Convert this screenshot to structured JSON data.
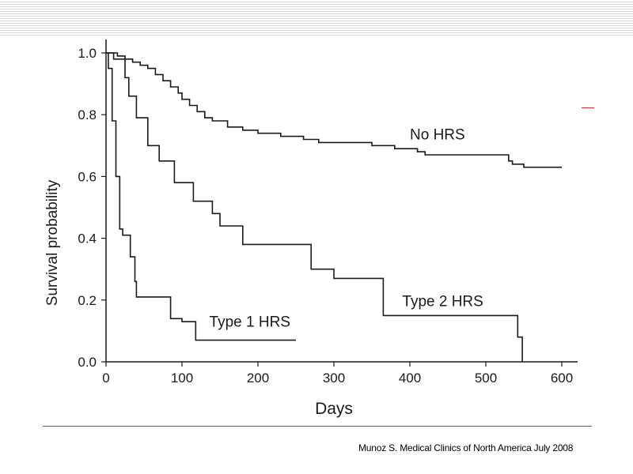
{
  "citation": "Munoz S. Medical Clinics of North America July 2008",
  "colors": {
    "accent_rule": "#c0392b",
    "line": "#1a1a1a"
  },
  "chart_data": {
    "type": "line",
    "step": true,
    "xlabel": "Days",
    "ylabel": "Survival probability",
    "xlim": [
      0,
      600
    ],
    "ylim": [
      0,
      1.0
    ],
    "xticks": [
      "0",
      "100",
      "200",
      "300",
      "400",
      "500",
      "600"
    ],
    "yticks": [
      "0.0",
      "0.2",
      "0.4",
      "0.6",
      "0.8",
      "1.0"
    ],
    "grid": false,
    "series": [
      {
        "name": "No HRS",
        "points": [
          [
            0,
            1.0
          ],
          [
            5,
            1.0
          ],
          [
            15,
            0.99
          ],
          [
            25,
            0.98
          ],
          [
            35,
            0.97
          ],
          [
            45,
            0.96
          ],
          [
            55,
            0.95
          ],
          [
            65,
            0.93
          ],
          [
            75,
            0.91
          ],
          [
            85,
            0.89
          ],
          [
            95,
            0.87
          ],
          [
            100,
            0.85
          ],
          [
            110,
            0.83
          ],
          [
            120,
            0.81
          ],
          [
            130,
            0.79
          ],
          [
            140,
            0.78
          ],
          [
            160,
            0.76
          ],
          [
            180,
            0.75
          ],
          [
            200,
            0.74
          ],
          [
            230,
            0.73
          ],
          [
            260,
            0.72
          ],
          [
            280,
            0.71
          ],
          [
            320,
            0.71
          ],
          [
            340,
            0.71
          ],
          [
            350,
            0.7
          ],
          [
            380,
            0.69
          ],
          [
            410,
            0.68
          ],
          [
            420,
            0.67
          ],
          [
            450,
            0.67
          ],
          [
            510,
            0.67
          ],
          [
            530,
            0.65
          ],
          [
            535,
            0.64
          ],
          [
            550,
            0.63
          ],
          [
            600,
            0.63
          ]
        ]
      },
      {
        "name": "Type 2 HRS",
        "points": [
          [
            0,
            1.0
          ],
          [
            10,
            0.98
          ],
          [
            25,
            0.92
          ],
          [
            30,
            0.86
          ],
          [
            40,
            0.79
          ],
          [
            55,
            0.7
          ],
          [
            70,
            0.65
          ],
          [
            90,
            0.58
          ],
          [
            115,
            0.52
          ],
          [
            140,
            0.48
          ],
          [
            150,
            0.44
          ],
          [
            180,
            0.38
          ],
          [
            270,
            0.3
          ],
          [
            300,
            0.27
          ],
          [
            365,
            0.15
          ],
          [
            540,
            0.15
          ],
          [
            542,
            0.08
          ],
          [
            548,
            0.0
          ]
        ]
      },
      {
        "name": "Type 1 HRS",
        "points": [
          [
            0,
            1.0
          ],
          [
            3,
            0.95
          ],
          [
            8,
            0.78
          ],
          [
            13,
            0.6
          ],
          [
            18,
            0.43
          ],
          [
            22,
            0.41
          ],
          [
            32,
            0.34
          ],
          [
            38,
            0.26
          ],
          [
            40,
            0.21
          ],
          [
            60,
            0.21
          ],
          [
            85,
            0.14
          ],
          [
            100,
            0.13
          ],
          [
            118,
            0.07
          ],
          [
            140,
            0.07
          ],
          [
            250,
            0.07
          ]
        ]
      }
    ]
  }
}
